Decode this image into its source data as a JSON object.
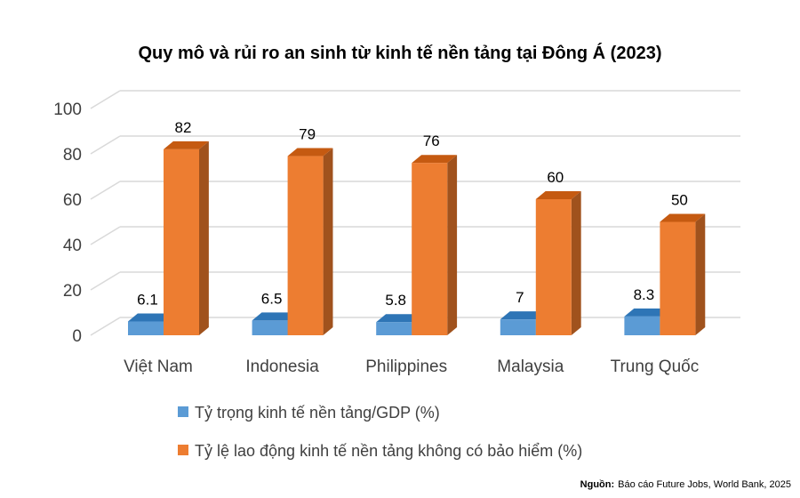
{
  "chart_data": {
    "type": "bar",
    "title": "Quy mô và rủi ro an sinh từ kinh tế nền tảng tại Đông Á (2023)",
    "categories": [
      "Việt Nam",
      "Indonesia",
      "Philippines",
      "Malaysia",
      "Trung Quốc"
    ],
    "series": [
      {
        "name": "Tỷ trọng kinh tế nền tảng/GDP (%)",
        "values": [
          6.1,
          6.5,
          5.8,
          7,
          8.3
        ],
        "labels": [
          "6.1",
          "6.5",
          "5.8",
          "7",
          "8.3"
        ]
      },
      {
        "name": "Tỷ lệ lao động kinh tế nền tảng không có bảo hiểm (%)",
        "values": [
          82,
          79,
          76,
          60,
          50
        ],
        "labels": [
          "82",
          "79",
          "76",
          "60",
          "50"
        ]
      }
    ],
    "ylim": [
      0,
      100
    ],
    "yticks": [
      "0",
      "20",
      "40",
      "60",
      "80",
      "100"
    ],
    "xlabel": "",
    "ylabel": "",
    "grid": true,
    "legend_position": "bottom",
    "three_d": true
  },
  "colors": {
    "series1_front": "#5B9BD5",
    "series1_top": "#2E75B6",
    "series1_side": "#41719C",
    "series2_front": "#ED7D31",
    "series2_top": "#C55A11",
    "series2_side": "#A0521D",
    "grid": "#D9D9D9"
  },
  "source": {
    "label": "Nguồn:",
    "text": "Báo cáo Future Jobs, World Bank, 2025"
  }
}
